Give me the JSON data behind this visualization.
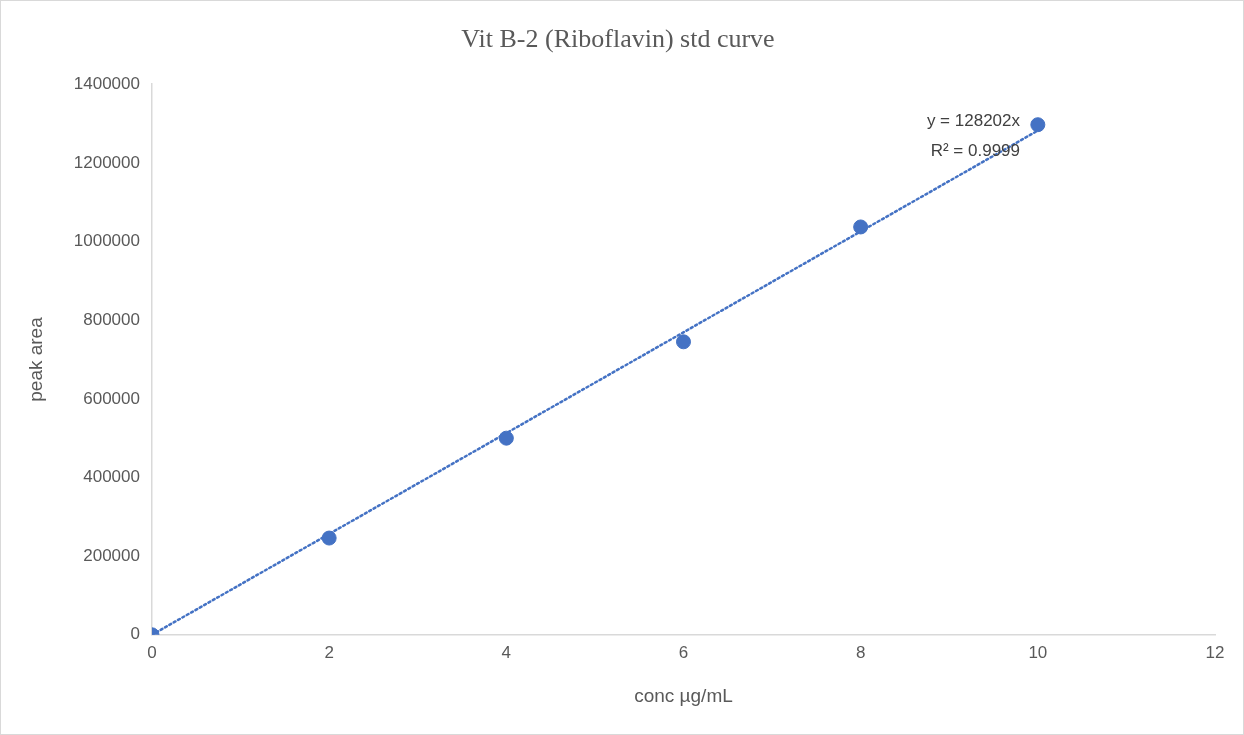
{
  "chart_data": {
    "type": "scatter",
    "title": "Vit B-2 (Riboflavin) std curve",
    "xlabel": "conc µg/mL",
    "ylabel": "peak area",
    "x": [
      0,
      2,
      4,
      6,
      8,
      10
    ],
    "series": [
      {
        "type": "scatter",
        "color": "#4472c4",
        "values": [
          0,
          246000,
          500000,
          745000,
          1037000,
          1297000
        ],
        "marker": "circle"
      },
      {
        "type": "line",
        "color": "#4472c4",
        "x": [
          0,
          10
        ],
        "values": [
          0,
          1282000
        ],
        "line_style": "dotted",
        "marker": "none"
      }
    ],
    "xlim": [
      0,
      12
    ],
    "xticks": [
      0,
      2,
      4,
      6,
      8,
      10,
      12
    ],
    "ylim": [
      0,
      1400000
    ],
    "yticks": [
      0,
      200000,
      400000,
      600000,
      800000,
      1000000,
      1200000,
      1400000
    ],
    "grid": false,
    "legend": false,
    "annotations": [
      "y = 128202x",
      "R² = 0.9999"
    ]
  }
}
